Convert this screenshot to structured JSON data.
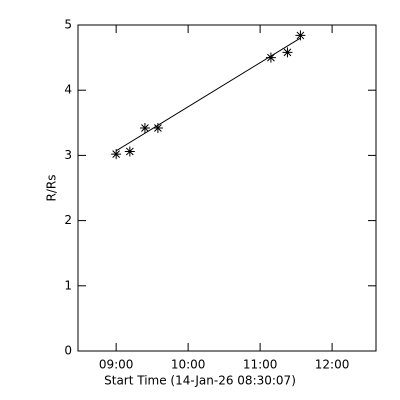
{
  "chart_data": {
    "type": "scatter",
    "x_label": "Start Time (14-Jan-26 08:30:07)",
    "y_label": "R/Rs",
    "x": [
      9.0,
      9.19,
      9.4,
      9.58,
      11.15,
      11.38,
      11.56
    ],
    "values": [
      3.02,
      3.06,
      3.42,
      3.42,
      4.5,
      4.58,
      4.84
    ],
    "color": "#000000",
    "fit": {
      "x": [
        9.0,
        11.56
      ],
      "values": [
        3.07,
        4.8
      ]
    },
    "xlim": [
      8.47,
      12.61
    ],
    "xticks": [
      {
        "value": 9,
        "label": "09:00"
      },
      {
        "value": 10,
        "label": "10:00"
      },
      {
        "value": 11,
        "label": "11:00"
      },
      {
        "value": 12,
        "label": "12:00"
      }
    ],
    "ylim": [
      0,
      5
    ],
    "yticks": [
      0,
      1,
      2,
      3,
      4,
      5
    ],
    "grid": false
  }
}
